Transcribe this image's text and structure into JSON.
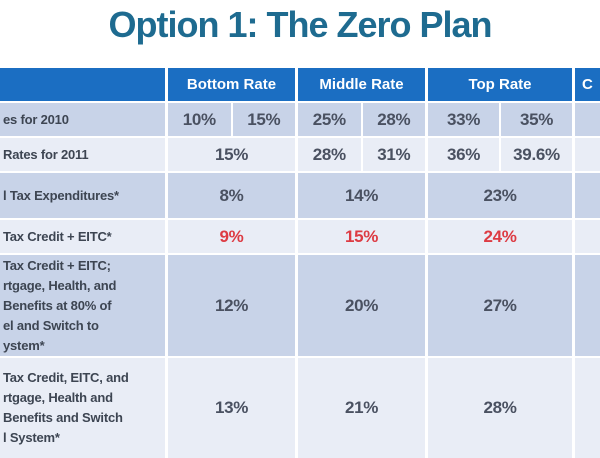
{
  "slide": {
    "title": "Option 1: The Zero Plan"
  },
  "colors": {
    "title_text": "#1e6b90",
    "header_bg": "#1b6ec2",
    "header_text": "#ffffff",
    "row_dark_bg": "#c8d3e8",
    "row_light_bg": "#e9edf6",
    "value_text": "#4a5161",
    "emphasis_value_text": "#dd3b43",
    "label_text": "#3d4552"
  },
  "table": {
    "headers": {
      "label_col": "",
      "bottom": "Bottom Rate",
      "middle": "Middle Rate",
      "top": "Top Rate",
      "partial_right": "C"
    },
    "rows": [
      {
        "label": "es for 2010",
        "bottom": [
          "10%",
          "15%"
        ],
        "middle": [
          "25%",
          "28%"
        ],
        "top": [
          "33%",
          "35%"
        ],
        "emphasis": false
      },
      {
        "label": "Rates for 2011",
        "bottom": [
          "15%"
        ],
        "middle": [
          "28%",
          "31%"
        ],
        "top": [
          "36%",
          "39.6%"
        ],
        "emphasis": false
      },
      {
        "label": "l Tax Expenditures*",
        "bottom": [
          "8%"
        ],
        "middle": [
          "14%"
        ],
        "top": [
          "23%"
        ],
        "emphasis": false
      },
      {
        "label": "Tax Credit + EITC*",
        "bottom": [
          "9%"
        ],
        "middle": [
          "15%"
        ],
        "top": [
          "24%"
        ],
        "emphasis": true
      },
      {
        "label": "Tax Credit + EITC;\nrtgage, Health, and\nBenefits at 80% of\nel and Switch to\nystem*",
        "bottom": [
          "12%"
        ],
        "middle": [
          "20%"
        ],
        "top": [
          "27%"
        ],
        "emphasis": false
      },
      {
        "label": "Tax Credit, EITC, and\nrtgage, Health and\nBenefits and Switch\nl System*",
        "bottom": [
          "13%"
        ],
        "middle": [
          "21%"
        ],
        "top": [
          "28%"
        ],
        "emphasis": false
      }
    ]
  }
}
